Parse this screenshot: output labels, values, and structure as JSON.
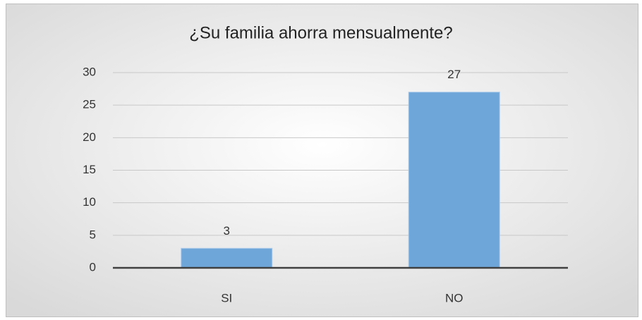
{
  "chart_data": {
    "type": "bar",
    "title": "¿Su familia ahorra mensualmente?",
    "categories": [
      "SI",
      "NO"
    ],
    "values": [
      3,
      27
    ],
    "color": "#6fa6d9",
    "ylim": [
      0,
      30
    ],
    "yticks": [
      0,
      5,
      10,
      15,
      20,
      25,
      30
    ],
    "grid": true
  }
}
